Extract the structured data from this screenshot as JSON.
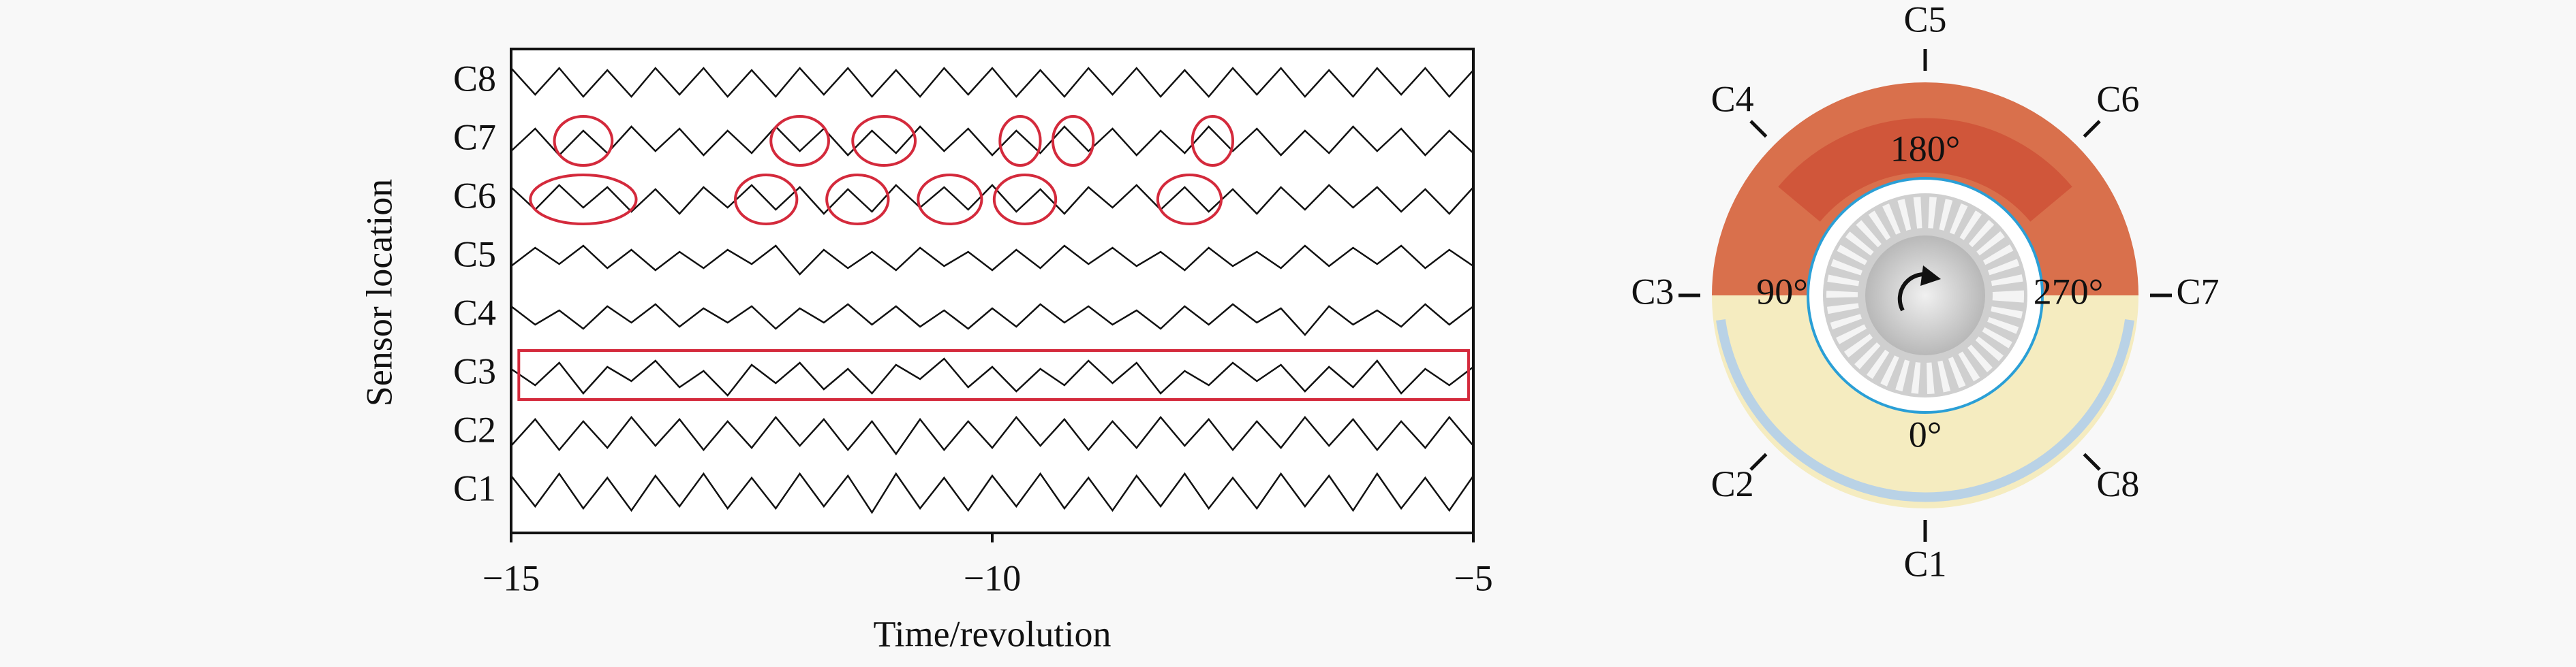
{
  "chart_data": {
    "type": "line",
    "xlabel": "Time/revolution",
    "ylabel": "Sensor location",
    "categories": [
      "C1",
      "C2",
      "C3",
      "C4",
      "C5",
      "C6",
      "C7",
      "C8"
    ],
    "xlim": [
      -15,
      -5
    ],
    "xticks": [
      {
        "value": -15,
        "label": "−15"
      },
      {
        "value": -10,
        "label": "−10"
      },
      {
        "value": -5,
        "label": "−5"
      }
    ],
    "x": [
      -15,
      -14.75,
      -14.5,
      -14.25,
      -14,
      -13.75,
      -13.5,
      -13.25,
      -13,
      -12.75,
      -12.5,
      -12.25,
      -12,
      -11.75,
      -11.5,
      -11.25,
      -11,
      -10.75,
      -10.5,
      -10.25,
      -10,
      -9.75,
      -9.5,
      -9.25,
      -9,
      -8.75,
      -8.5,
      -8.25,
      -8,
      -7.75,
      -7.5,
      -7.25,
      -7,
      -6.75,
      -6.5,
      -6.25,
      -6,
      -5.75,
      -5.5,
      -5.25,
      -5
    ],
    "color": "#111111",
    "traces": [
      [
        0.8,
        -0.7,
        0.9,
        -0.8,
        0.7,
        -0.9,
        0.8,
        -0.7,
        0.9,
        -0.8,
        0.7,
        -0.8,
        0.9,
        -0.7,
        0.8,
        -1,
        0.9,
        -0.8,
        0.7,
        -0.9,
        0.8,
        -0.7,
        0.9,
        -0.8,
        0.7,
        -0.9,
        0.8,
        -0.7,
        0.9,
        -0.8,
        0.7,
        -0.8,
        0.9,
        -0.7,
        0.8,
        -0.9,
        0.9,
        -0.8,
        0.7,
        -0.9,
        0.8
      ],
      [
        -0.6,
        0.7,
        -0.8,
        0.6,
        -0.7,
        0.8,
        -0.6,
        0.7,
        -0.8,
        0.6,
        -0.7,
        0.8,
        -0.6,
        0.7,
        -0.8,
        0.6,
        -1,
        0.7,
        -0.8,
        0.6,
        -0.7,
        0.8,
        -0.6,
        0.7,
        -0.8,
        0.6,
        -0.7,
        0.8,
        -0.6,
        0.7,
        -0.8,
        0.6,
        -0.7,
        0.8,
        -0.6,
        0.7,
        -0.8,
        0.6,
        -0.7,
        0.8,
        -0.6
      ],
      [
        0.3,
        -0.5,
        0.6,
        -0.9,
        0.4,
        -0.3,
        0.7,
        -0.6,
        0.2,
        -1,
        0.5,
        -0.4,
        0.6,
        -0.7,
        0.3,
        -0.9,
        0.5,
        -0.2,
        0.8,
        -0.6,
        0.4,
        -0.8,
        0.3,
        -0.5,
        0.7,
        -0.4,
        0.6,
        -0.9,
        0.2,
        -0.5,
        0.6,
        -0.3,
        0.5,
        -0.8,
        0.4,
        -0.6,
        0.7,
        -0.9,
        0.3,
        -0.5,
        0.4
      ],
      [
        0.5,
        -0.4,
        0.3,
        -0.6,
        0.5,
        -0.3,
        0.6,
        -0.5,
        0.4,
        -0.3,
        0.5,
        -0.6,
        0.4,
        -0.3,
        0.6,
        -0.4,
        0.5,
        -0.5,
        0.3,
        -0.6,
        0.4,
        -0.5,
        0.6,
        -0.3,
        0.5,
        -0.4,
        0.3,
        -0.6,
        0.5,
        -0.4,
        0.6,
        -0.3,
        0.4,
        -0.9,
        0.5,
        -0.4,
        0.3,
        -0.5,
        0.6,
        -0.4,
        0.5
      ],
      [
        -0.4,
        0.5,
        -0.3,
        0.6,
        -0.5,
        0.4,
        -0.6,
        0.3,
        -0.5,
        0.4,
        -0.3,
        0.6,
        -0.8,
        0.4,
        -0.5,
        0.3,
        -0.6,
        0.5,
        -0.4,
        0.3,
        -0.6,
        0.4,
        -0.5,
        0.6,
        -0.3,
        0.5,
        -0.4,
        0.3,
        -0.6,
        0.5,
        -0.4,
        0.3,
        -0.5,
        0.6,
        -0.4,
        0.5,
        -0.3,
        0.6,
        -0.5,
        0.4,
        -0.4
      ],
      [
        0.6,
        -0.5,
        0.7,
        -0.4,
        0.6,
        -0.6,
        0.5,
        -0.7,
        0.6,
        -0.4,
        0.7,
        -0.5,
        0.6,
        -0.7,
        0.5,
        -0.6,
        0.7,
        -0.4,
        0.6,
        -0.5,
        0.7,
        -0.6,
        0.5,
        -0.7,
        0.6,
        -0.4,
        0.7,
        -0.5,
        0.6,
        -0.6,
        0.5,
        -0.7,
        0.6,
        -0.5,
        0.7,
        -0.4,
        0.6,
        -0.6,
        0.5,
        -0.7,
        0.6
      ],
      [
        -0.5,
        0.6,
        -0.7,
        0.5,
        -0.6,
        0.7,
        -0.5,
        0.6,
        -0.7,
        0.5,
        -0.6,
        0.7,
        -0.5,
        0.6,
        -0.7,
        0.5,
        -0.6,
        0.7,
        -0.5,
        0.6,
        -0.7,
        0.5,
        -0.6,
        0.7,
        -0.5,
        0.6,
        -0.7,
        0.5,
        -0.6,
        0.7,
        -0.5,
        0.6,
        -0.7,
        0.5,
        -0.6,
        0.7,
        -0.5,
        0.6,
        -0.7,
        0.5,
        -0.6
      ],
      [
        0.7,
        -0.6,
        0.7,
        -0.7,
        0.6,
        -0.7,
        0.7,
        -0.6,
        0.7,
        -0.7,
        0.6,
        -0.7,
        0.7,
        -0.6,
        0.7,
        -0.7,
        0.6,
        -0.7,
        0.7,
        -0.6,
        0.7,
        -0.7,
        0.6,
        -0.7,
        0.7,
        -0.6,
        0.7,
        -0.7,
        0.6,
        -0.7,
        0.7,
        -0.6,
        0.7,
        -0.7,
        0.6,
        -0.7,
        0.7,
        -0.6,
        0.7,
        -0.7,
        0.6
      ]
    ],
    "ellipses": [
      {
        "row": 6,
        "xlim": [
          -14.55,
          -13.95
        ]
      },
      {
        "row": 6,
        "xlim": [
          -12.3,
          -11.7
        ]
      },
      {
        "row": 6,
        "xlim": [
          -11.45,
          -10.8
        ]
      },
      {
        "row": 6,
        "xlim": [
          -9.92,
          -9.5
        ]
      },
      {
        "row": 6,
        "xlim": [
          -9.37,
          -8.95
        ]
      },
      {
        "row": 6,
        "xlim": [
          -7.92,
          -7.5
        ]
      },
      {
        "row": 5,
        "xlim": [
          -14.8,
          -13.7
        ]
      },
      {
        "row": 5,
        "xlim": [
          -12.67,
          -12.03
        ]
      },
      {
        "row": 5,
        "xlim": [
          -11.72,
          -11.08
        ]
      },
      {
        "row": 5,
        "xlim": [
          -10.77,
          -10.11
        ]
      },
      {
        "row": 5,
        "xlim": [
          -9.98,
          -9.34
        ]
      },
      {
        "row": 5,
        "xlim": [
          -8.28,
          -7.62
        ]
      }
    ],
    "box": {
      "row": 2,
      "xlim": [
        -14.92,
        -5.05
      ]
    },
    "highlight_color": "#d42a3c",
    "ring": {
      "sensors": [
        "C1",
        "C2",
        "C3",
        "C4",
        "C5",
        "C6",
        "C7",
        "C8"
      ],
      "angle_labels": [
        {
          "value": 0,
          "label": "0°"
        },
        {
          "value": 90,
          "label": "90°"
        },
        {
          "value": 180,
          "label": "180°"
        },
        {
          "value": 270,
          "label": "270°"
        }
      ]
    }
  }
}
